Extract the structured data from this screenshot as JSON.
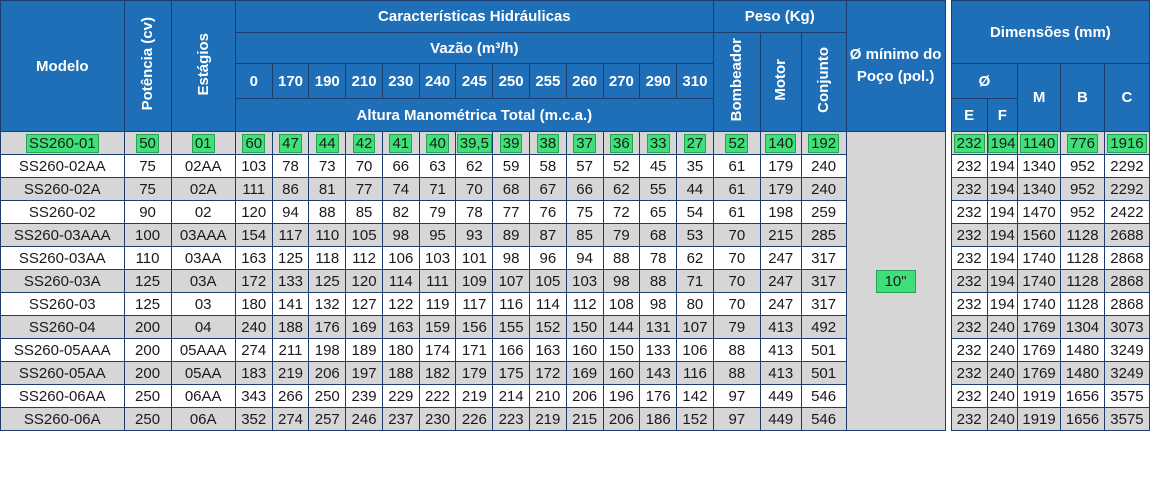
{
  "header": {
    "modelo": "Modelo",
    "potencia": "Potência (cv)",
    "estagios": "Estágios",
    "caracteristicas": "Características Hidráulicas",
    "vazao": "Vazão (m³/h)",
    "altura": "Altura Manométrica Total (m.c.a.)",
    "peso": "Peso (Kg)",
    "peso_cols": [
      "Bombeador",
      "Motor",
      "Conjunto"
    ],
    "diametro_minimo": "Ø mínimo do Poço (pol.)",
    "dimensoes": "Dimensões (mm)",
    "diametro_symbol": "Ø",
    "dim_cols": [
      "E",
      "F",
      "M",
      "B",
      "C"
    ],
    "flows": [
      "0",
      "170",
      "190",
      "210",
      "230",
      "240",
      "245",
      "250",
      "255",
      "260",
      "270",
      "290",
      "310"
    ]
  },
  "well_diameter": "10\"",
  "rows": [
    {
      "modelo": "SS260-01",
      "potencia": "50",
      "estagios": "01",
      "heads": [
        "60",
        "47",
        "44",
        "42",
        "41",
        "40",
        "39,5",
        "39",
        "38",
        "37",
        "36",
        "33",
        "27"
      ],
      "bombeador": "52",
      "motor": "140",
      "conjunto": "192",
      "e": "232",
      "f": "194",
      "m": "1140",
      "b": "776",
      "c": "1916"
    },
    {
      "modelo": "SS260-02AA",
      "potencia": "75",
      "estagios": "02AA",
      "heads": [
        "103",
        "78",
        "73",
        "70",
        "66",
        "63",
        "62",
        "59",
        "58",
        "57",
        "52",
        "45",
        "35"
      ],
      "bombeador": "61",
      "motor": "179",
      "conjunto": "240",
      "e": "232",
      "f": "194",
      "m": "1340",
      "b": "952",
      "c": "2292"
    },
    {
      "modelo": "SS260-02A",
      "potencia": "75",
      "estagios": "02A",
      "heads": [
        "111",
        "86",
        "81",
        "77",
        "74",
        "71",
        "70",
        "68",
        "67",
        "66",
        "62",
        "55",
        "44"
      ],
      "bombeador": "61",
      "motor": "179",
      "conjunto": "240",
      "e": "232",
      "f": "194",
      "m": "1340",
      "b": "952",
      "c": "2292"
    },
    {
      "modelo": "SS260-02",
      "potencia": "90",
      "estagios": "02",
      "heads": [
        "120",
        "94",
        "88",
        "85",
        "82",
        "79",
        "78",
        "77",
        "76",
        "75",
        "72",
        "65",
        "54"
      ],
      "bombeador": "61",
      "motor": "198",
      "conjunto": "259",
      "e": "232",
      "f": "194",
      "m": "1470",
      "b": "952",
      "c": "2422"
    },
    {
      "modelo": "SS260-03AAA",
      "potencia": "100",
      "estagios": "03AAA",
      "heads": [
        "154",
        "117",
        "110",
        "105",
        "98",
        "95",
        "93",
        "89",
        "87",
        "85",
        "79",
        "68",
        "53"
      ],
      "bombeador": "70",
      "motor": "215",
      "conjunto": "285",
      "e": "232",
      "f": "194",
      "m": "1560",
      "b": "1128",
      "c": "2688"
    },
    {
      "modelo": "SS260-03AA",
      "potencia": "110",
      "estagios": "03AA",
      "heads": [
        "163",
        "125",
        "118",
        "112",
        "106",
        "103",
        "101",
        "98",
        "96",
        "94",
        "88",
        "78",
        "62"
      ],
      "bombeador": "70",
      "motor": "247",
      "conjunto": "317",
      "e": "232",
      "f": "194",
      "m": "1740",
      "b": "1128",
      "c": "2868"
    },
    {
      "modelo": "SS260-03A",
      "potencia": "125",
      "estagios": "03A",
      "heads": [
        "172",
        "133",
        "125",
        "120",
        "114",
        "111",
        "109",
        "107",
        "105",
        "103",
        "98",
        "88",
        "71"
      ],
      "bombeador": "70",
      "motor": "247",
      "conjunto": "317",
      "e": "232",
      "f": "194",
      "m": "1740",
      "b": "1128",
      "c": "2868"
    },
    {
      "modelo": "SS260-03",
      "potencia": "125",
      "estagios": "03",
      "heads": [
        "180",
        "141",
        "132",
        "127",
        "122",
        "119",
        "117",
        "116",
        "114",
        "112",
        "108",
        "98",
        "80"
      ],
      "bombeador": "70",
      "motor": "247",
      "conjunto": "317",
      "e": "232",
      "f": "194",
      "m": "1740",
      "b": "1128",
      "c": "2868"
    },
    {
      "modelo": "SS260-04",
      "potencia": "200",
      "estagios": "04",
      "heads": [
        "240",
        "188",
        "176",
        "169",
        "163",
        "159",
        "156",
        "155",
        "152",
        "150",
        "144",
        "131",
        "107"
      ],
      "bombeador": "79",
      "motor": "413",
      "conjunto": "492",
      "e": "232",
      "f": "240",
      "m": "1769",
      "b": "1304",
      "c": "3073"
    },
    {
      "modelo": "SS260-05AAA",
      "potencia": "200",
      "estagios": "05AAA",
      "heads": [
        "274",
        "211",
        "198",
        "189",
        "180",
        "174",
        "171",
        "166",
        "163",
        "160",
        "150",
        "133",
        "106"
      ],
      "bombeador": "88",
      "motor": "413",
      "conjunto": "501",
      "e": "232",
      "f": "240",
      "m": "1769",
      "b": "1480",
      "c": "3249"
    },
    {
      "modelo": "SS260-05AA",
      "potencia": "200",
      "estagios": "05AA",
      "heads": [
        "183",
        "219",
        "206",
        "197",
        "188",
        "182",
        "179",
        "175",
        "172",
        "169",
        "160",
        "143",
        "116"
      ],
      "bombeador": "88",
      "motor": "413",
      "conjunto": "501",
      "e": "232",
      "f": "240",
      "m": "1769",
      "b": "1480",
      "c": "3249"
    },
    {
      "modelo": "SS260-06AA",
      "potencia": "250",
      "estagios": "06AA",
      "heads": [
        "343",
        "266",
        "250",
        "239",
        "229",
        "222",
        "219",
        "214",
        "210",
        "206",
        "196",
        "176",
        "142"
      ],
      "bombeador": "97",
      "motor": "449",
      "conjunto": "546",
      "e": "232",
      "f": "240",
      "m": "1919",
      "b": "1656",
      "c": "3575"
    },
    {
      "modelo": "SS260-06A",
      "potencia": "250",
      "estagios": "06A",
      "heads": [
        "352",
        "274",
        "257",
        "246",
        "237",
        "230",
        "226",
        "223",
        "219",
        "215",
        "206",
        "186",
        "152"
      ],
      "bombeador": "97",
      "motor": "449",
      "conjunto": "546",
      "e": "232",
      "f": "240",
      "m": "1919",
      "b": "1656",
      "c": "3575"
    }
  ]
}
